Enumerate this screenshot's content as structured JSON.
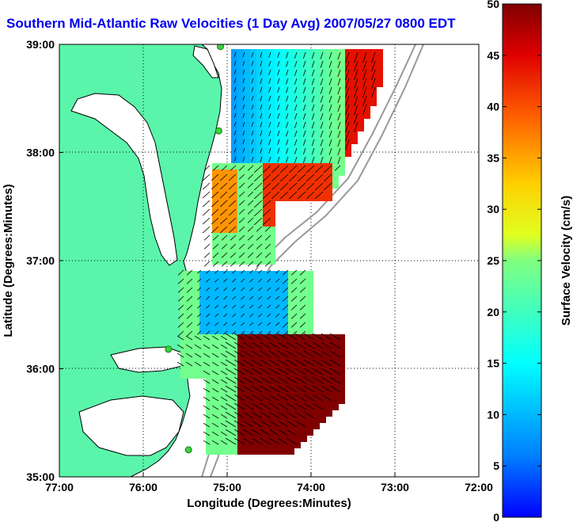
{
  "title": "Southern Mid-Atlantic Raw Velocities (1 Day Avg) 2007/05/27 0800 EDT",
  "colors": {
    "title": "#0000ee",
    "land": "#5af5aa",
    "water": "#ffffff",
    "coast": "#000000",
    "bathymetry": "#999999",
    "station": "#3cd23c"
  },
  "axes": {
    "xlabel": "Longitude (Degrees:Minutes)",
    "ylabel": "Latitude (Degrees:Minutes)",
    "x_ticks": [
      "77:00",
      "76:00",
      "75:00",
      "74:00",
      "73:00",
      "72:00"
    ],
    "y_ticks": [
      "39:00",
      "38:00",
      "37:00",
      "36:00",
      "35:00"
    ],
    "xlim": [
      -77,
      -72
    ],
    "ylim": [
      35,
      39
    ],
    "grid": "dotted"
  },
  "colorbar": {
    "label": "Surface Velocity (cm/s)",
    "ticks": [
      "0",
      "5",
      "10",
      "15",
      "20",
      "25",
      "30",
      "35",
      "40",
      "45",
      "50"
    ],
    "range": [
      0,
      50
    ],
    "colormap": "jet"
  },
  "stations": [
    {
      "lon": -75.08,
      "lat": 38.98
    },
    {
      "lon": -75.1,
      "lat": 38.2
    },
    {
      "lon": -75.7,
      "lat": 36.18
    },
    {
      "lon": -75.46,
      "lat": 35.25
    }
  ]
}
